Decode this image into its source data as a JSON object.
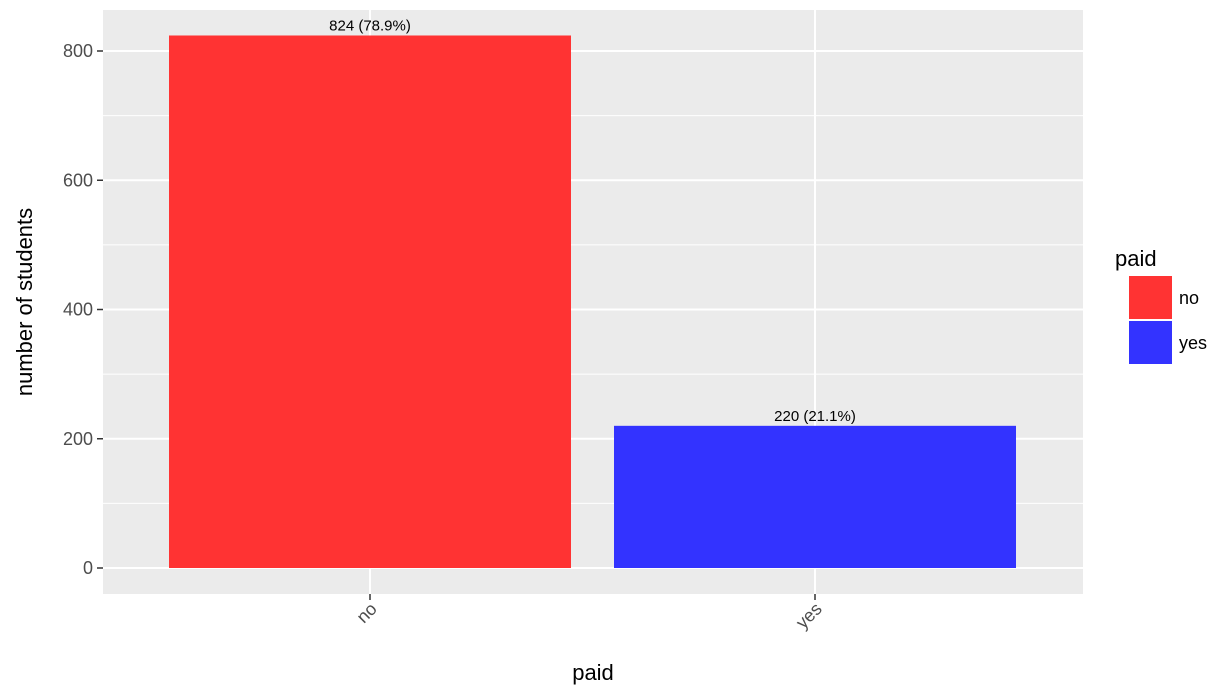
{
  "chart_data": {
    "type": "bar",
    "categories": [
      "no",
      "yes"
    ],
    "values": [
      824,
      220
    ],
    "data_labels": [
      "824 (78.9%)",
      "220 (21.1%)"
    ],
    "colors": [
      "#ff3333",
      "#3333ff"
    ],
    "xlabel": "paid",
    "ylabel": "number of students",
    "ylim": [
      0,
      880
    ],
    "yticks": [
      0,
      200,
      400,
      600,
      800
    ],
    "ytick_labels": [
      "0",
      "200",
      "400",
      "600",
      "800"
    ],
    "grid": true,
    "background": "#ebebeb",
    "legend": {
      "title": "paid",
      "position": "right",
      "entries": [
        "no",
        "yes"
      ]
    }
  }
}
